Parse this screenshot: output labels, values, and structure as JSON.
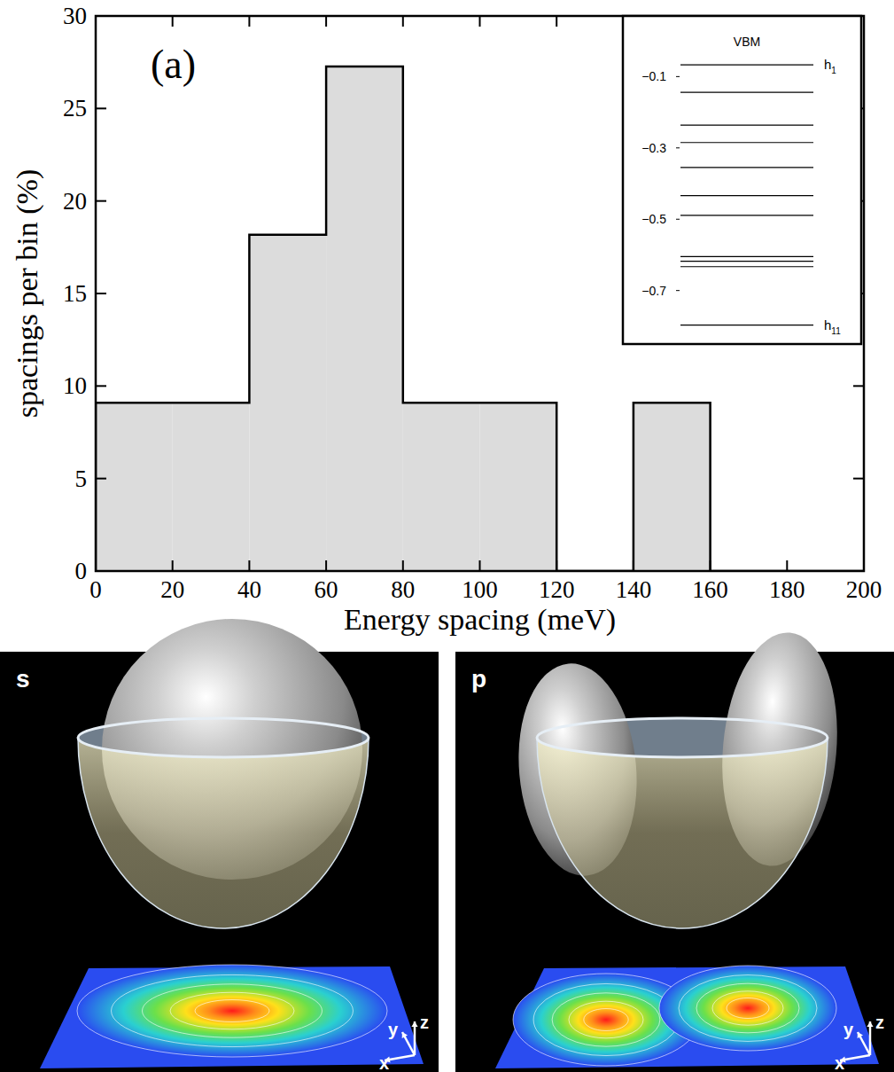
{
  "chart_data": {
    "type": "histogram",
    "panel_label": "(a)",
    "x_label": "Energy spacing (meV)",
    "y_label": "spacings per bin (%)",
    "bins": [
      0,
      20,
      40,
      60,
      80,
      100,
      120,
      140,
      160,
      180,
      200
    ],
    "values": [
      9.09,
      9.09,
      18.18,
      27.27,
      9.09,
      9.09,
      0,
      9.09,
      0,
      0
    ],
    "color": "#dcdcdc",
    "xlim": [
      0,
      200
    ],
    "ylim": [
      0,
      30
    ],
    "xticks": [
      0,
      20,
      40,
      60,
      80,
      100,
      120,
      140,
      160,
      180,
      200
    ],
    "yticks": [
      0,
      5,
      10,
      15,
      20,
      25,
      30
    ],
    "grid": false,
    "inset": {
      "type": "levels",
      "title": "VBM",
      "levels": [
        -0.067,
        -0.144,
        -0.236,
        -0.285,
        -0.355,
        -0.434,
        -0.489,
        -0.605,
        -0.618,
        -0.633,
        -0.797
      ],
      "ylim": [
        -0.85,
        0.07
      ],
      "yticks": [
        {
          "value": -0.1,
          "label": "−0.1"
        },
        {
          "value": -0.3,
          "label": "−0.3"
        },
        {
          "value": -0.5,
          "label": "−0.5"
        },
        {
          "value": -0.7,
          "label": "−0.7"
        }
      ],
      "first_label": {
        "base": "h",
        "sub": "1"
      },
      "last_label": {
        "base": "h",
        "sub": "11"
      }
    }
  },
  "panels": [
    {
      "label": "s",
      "axes": [
        "x",
        "y",
        "z"
      ]
    },
    {
      "label": "p",
      "axes": [
        "x",
        "y",
        "z"
      ]
    }
  ]
}
